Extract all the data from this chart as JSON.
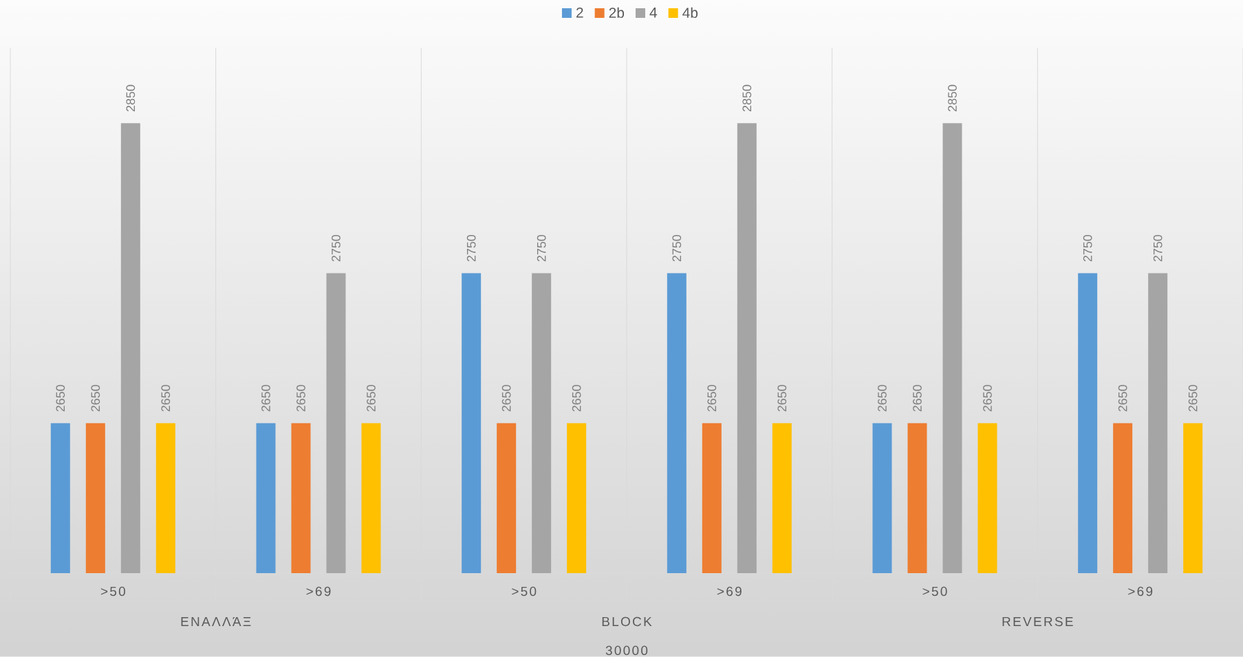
{
  "chart_data": {
    "type": "bar",
    "categories": [
      ">50",
      ">69",
      ">50",
      ">69",
      ">50",
      ">69"
    ],
    "annotations": [
      "ΕΝΑΛΛΆΞ",
      "BLOCK",
      "REVERSE"
    ],
    "xlabel": "30000",
    "series": [
      {
        "name": "2",
        "color": "#5b9bd5",
        "values": [
          2650,
          2650,
          2750,
          2750,
          2650,
          2750
        ]
      },
      {
        "name": "2b",
        "color": "#ed7d31",
        "values": [
          2650,
          2650,
          2650,
          2650,
          2650,
          2650
        ]
      },
      {
        "name": "4",
        "color": "#a5a5a5",
        "values": [
          2850,
          2750,
          2750,
          2850,
          2850,
          2750
        ]
      },
      {
        "name": "4b",
        "color": "#ffc000",
        "values": [
          2650,
          2650,
          2650,
          2650,
          2650,
          2650
        ]
      }
    ],
    "ylim": [
      2550,
      2900
    ],
    "data_labels": true,
    "grid": "x",
    "legend": "top",
    "tick_labels": "x"
  }
}
